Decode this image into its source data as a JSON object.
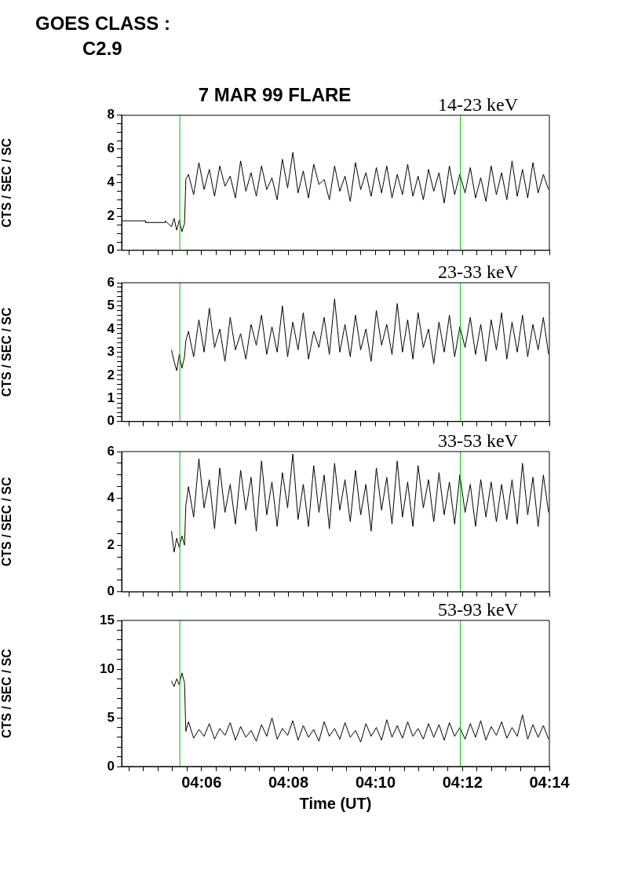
{
  "chart_data": [
    {
      "type": "line",
      "title": "7 MAR 99 FLARE",
      "subtitle": "GOES CLASS : C2.9",
      "ylabel": "CTS / SEC / SC",
      "annotations": [
        "14-23 keV"
      ],
      "tick_labels": "y",
      "grid": false,
      "legend": false,
      "marker": "none",
      "line_style": "solid",
      "xlim": [
        4.0694,
        4.2333
      ],
      "ylim": [
        0,
        8
      ],
      "xticks": [
        {
          "value": 4.0722,
          "label": null
        },
        {
          "value": 4.0778,
          "label": null
        },
        {
          "value": 4.0833,
          "label": null
        },
        {
          "value": 4.0889,
          "label": null
        },
        {
          "value": 4.0944,
          "label": null
        },
        {
          "value": 4.1,
          "label": null
        },
        {
          "value": 4.1056,
          "label": null
        },
        {
          "value": 4.1111,
          "label": null
        },
        {
          "value": 4.1167,
          "label": null
        },
        {
          "value": 4.1222,
          "label": null
        },
        {
          "value": 4.1278,
          "label": null
        },
        {
          "value": 4.1333,
          "label": null
        },
        {
          "value": 4.1389,
          "label": null
        },
        {
          "value": 4.1444,
          "label": null
        },
        {
          "value": 4.15,
          "label": null
        },
        {
          "value": 4.1556,
          "label": null
        },
        {
          "value": 4.1611,
          "label": null
        },
        {
          "value": 4.1667,
          "label": null
        },
        {
          "value": 4.1722,
          "label": null
        },
        {
          "value": 4.1778,
          "label": null
        },
        {
          "value": 4.1833,
          "label": null
        },
        {
          "value": 4.1889,
          "label": null
        },
        {
          "value": 4.1944,
          "label": null
        },
        {
          "value": 4.2,
          "label": null
        },
        {
          "value": 4.2056,
          "label": null
        },
        {
          "value": 4.2111,
          "label": null
        },
        {
          "value": 4.2167,
          "label": null
        },
        {
          "value": 4.2222,
          "label": null
        },
        {
          "value": 4.2278,
          "label": null
        },
        {
          "value": 4.2333,
          "label": null
        }
      ],
      "yticks": [
        0,
        {
          "value": 0.5,
          "label": null
        },
        {
          "value": 1,
          "label": null
        },
        {
          "value": 1.5,
          "label": null
        },
        2,
        {
          "value": 2.5,
          "label": null
        },
        {
          "value": 3,
          "label": null
        },
        {
          "value": 3.5,
          "label": null
        },
        4,
        {
          "value": 4.5,
          "label": null
        },
        {
          "value": 5,
          "label": null
        },
        {
          "value": 5.5,
          "label": null
        },
        6,
        {
          "value": 6.5,
          "label": null
        },
        {
          "value": 7,
          "label": null
        },
        {
          "value": 7.5,
          "label": null
        },
        8
      ],
      "ref_lines": [
        {
          "axis": "x",
          "value": 4.0917,
          "color": "#00c000"
        },
        {
          "axis": "x",
          "value": 4.1992,
          "color": "#00c000"
        }
      ],
      "x": [
        4.0694,
        4.0785,
        4.0786,
        4.086,
        4.0861,
        4.0885,
        4.0895,
        4.0905,
        4.0915,
        4.0925,
        4.0935,
        4.094,
        4.095,
        4.097,
        4.099,
        4.101,
        4.103,
        4.105,
        4.107,
        4.109,
        4.111,
        4.113,
        4.115,
        4.117,
        4.119,
        4.121,
        4.123,
        4.125,
        4.127,
        4.129,
        4.131,
        4.133,
        4.135,
        4.137,
        4.139,
        4.141,
        4.143,
        4.145,
        4.147,
        4.149,
        4.151,
        4.153,
        4.155,
        4.157,
        4.159,
        4.161,
        4.163,
        4.165,
        4.167,
        4.169,
        4.171,
        4.173,
        4.175,
        4.177,
        4.179,
        4.181,
        4.183,
        4.185,
        4.187,
        4.189,
        4.191,
        4.193,
        4.195,
        4.197,
        4.199,
        4.201,
        4.203,
        4.205,
        4.207,
        4.209,
        4.211,
        4.213,
        4.215,
        4.217,
        4.219,
        4.221,
        4.223,
        4.225,
        4.227,
        4.229,
        4.231,
        4.233
      ],
      "series": [
        {
          "color": "#000000",
          "values": [
            1.75,
            1.75,
            1.65,
            1.65,
            1.75,
            1.4,
            1.9,
            1.2,
            1.8,
            1.1,
            1.6,
            4.2,
            4.5,
            3.3,
            5.2,
            3.6,
            4.8,
            3.2,
            5.0,
            3.8,
            4.4,
            3.1,
            5.3,
            3.5,
            4.6,
            3.2,
            5.0,
            3.6,
            4.3,
            3.0,
            5.4,
            3.7,
            5.8,
            3.4,
            4.7,
            3.1,
            5.1,
            3.9,
            4.2,
            3.0,
            5.0,
            3.5,
            4.4,
            2.9,
            5.2,
            3.6,
            4.6,
            3.2,
            4.9,
            3.4,
            5.0,
            3.1,
            4.5,
            3.3,
            5.1,
            3.2,
            4.4,
            3.0,
            4.8,
            3.5,
            4.6,
            2.8,
            5.0,
            3.3,
            4.5,
            3.4,
            4.9,
            3.1,
            4.3,
            2.9,
            5.0,
            3.3,
            4.6,
            3.0,
            5.3,
            3.2,
            4.8,
            3.1,
            5.2,
            3.4,
            4.5,
            3.6
          ]
        }
      ]
    },
    {
      "type": "line",
      "ylabel": "CTS / SEC / SC",
      "annotations": [
        "23-33 keV"
      ],
      "tick_labels": "y",
      "grid": false,
      "legend": false,
      "marker": "none",
      "line_style": "solid",
      "xlim": [
        4.0694,
        4.2333
      ],
      "ylim": [
        0,
        6
      ],
      "xticks": [
        {
          "value": 4.0722,
          "label": null
        },
        {
          "value": 4.0778,
          "label": null
        },
        {
          "value": 4.0833,
          "label": null
        },
        {
          "value": 4.0889,
          "label": null
        },
        {
          "value": 4.0944,
          "label": null
        },
        {
          "value": 4.1,
          "label": null
        },
        {
          "value": 4.1056,
          "label": null
        },
        {
          "value": 4.1111,
          "label": null
        },
        {
          "value": 4.1167,
          "label": null
        },
        {
          "value": 4.1222,
          "label": null
        },
        {
          "value": 4.1278,
          "label": null
        },
        {
          "value": 4.1333,
          "label": null
        },
        {
          "value": 4.1389,
          "label": null
        },
        {
          "value": 4.1444,
          "label": null
        },
        {
          "value": 4.15,
          "label": null
        },
        {
          "value": 4.1556,
          "label": null
        },
        {
          "value": 4.1611,
          "label": null
        },
        {
          "value": 4.1667,
          "label": null
        },
        {
          "value": 4.1722,
          "label": null
        },
        {
          "value": 4.1778,
          "label": null
        },
        {
          "value": 4.1833,
          "label": null
        },
        {
          "value": 4.1889,
          "label": null
        },
        {
          "value": 4.1944,
          "label": null
        },
        {
          "value": 4.2,
          "label": null
        },
        {
          "value": 4.2056,
          "label": null
        },
        {
          "value": 4.2111,
          "label": null
        },
        {
          "value": 4.2167,
          "label": null
        },
        {
          "value": 4.2222,
          "label": null
        },
        {
          "value": 4.2278,
          "label": null
        },
        {
          "value": 4.2333,
          "label": null
        }
      ],
      "yticks": [
        0,
        {
          "value": 0.2,
          "label": null
        },
        {
          "value": 0.4,
          "label": null
        },
        {
          "value": 0.6,
          "label": null
        },
        {
          "value": 0.8,
          "label": null
        },
        1,
        {
          "value": 1.2,
          "label": null
        },
        {
          "value": 1.4,
          "label": null
        },
        {
          "value": 1.6,
          "label": null
        },
        {
          "value": 1.8,
          "label": null
        },
        2,
        {
          "value": 2.2,
          "label": null
        },
        {
          "value": 2.4,
          "label": null
        },
        {
          "value": 2.6,
          "label": null
        },
        {
          "value": 2.8,
          "label": null
        },
        3,
        {
          "value": 3.2,
          "label": null
        },
        {
          "value": 3.4,
          "label": null
        },
        {
          "value": 3.6,
          "label": null
        },
        {
          "value": 3.8,
          "label": null
        },
        4,
        {
          "value": 4.2,
          "label": null
        },
        {
          "value": 4.4,
          "label": null
        },
        {
          "value": 4.6,
          "label": null
        },
        {
          "value": 4.8,
          "label": null
        },
        5,
        {
          "value": 5.2,
          "label": null
        },
        {
          "value": 5.4,
          "label": null
        },
        {
          "value": 5.6,
          "label": null
        },
        {
          "value": 5.8,
          "label": null
        },
        6
      ],
      "ref_lines": [
        {
          "axis": "x",
          "value": 4.0917,
          "color": "#00c000"
        },
        {
          "axis": "x",
          "value": 4.1992,
          "color": "#00c000"
        }
      ],
      "x": [
        4.0885,
        4.0895,
        4.0905,
        4.0915,
        4.0925,
        4.0935,
        4.094,
        4.095,
        4.097,
        4.099,
        4.101,
        4.103,
        4.105,
        4.107,
        4.109,
        4.111,
        4.113,
        4.115,
        4.117,
        4.119,
        4.121,
        4.123,
        4.125,
        4.127,
        4.129,
        4.131,
        4.133,
        4.135,
        4.137,
        4.139,
        4.141,
        4.143,
        4.145,
        4.147,
        4.149,
        4.151,
        4.153,
        4.155,
        4.157,
        4.159,
        4.161,
        4.163,
        4.165,
        4.167,
        4.169,
        4.171,
        4.173,
        4.175,
        4.177,
        4.179,
        4.181,
        4.183,
        4.185,
        4.187,
        4.189,
        4.191,
        4.193,
        4.195,
        4.197,
        4.199,
        4.201,
        4.203,
        4.205,
        4.207,
        4.209,
        4.211,
        4.213,
        4.215,
        4.217,
        4.219,
        4.221,
        4.223,
        4.225,
        4.227,
        4.229,
        4.231,
        4.233
      ],
      "series": [
        {
          "color": "#000000",
          "values": [
            3.1,
            2.6,
            2.2,
            2.9,
            2.3,
            2.8,
            3.5,
            3.9,
            2.8,
            4.4,
            3.0,
            4.9,
            3.2,
            4.0,
            2.6,
            4.5,
            3.1,
            3.8,
            2.7,
            4.2,
            3.3,
            4.6,
            2.9,
            4.1,
            3.0,
            5.0,
            2.8,
            4.3,
            3.1,
            4.7,
            2.7,
            3.9,
            3.2,
            4.5,
            2.9,
            5.3,
            3.0,
            4.2,
            2.8,
            4.6,
            3.1,
            4.0,
            2.6,
            4.8,
            3.3,
            4.2,
            2.9,
            5.1,
            3.0,
            4.4,
            2.7,
            4.7,
            3.2,
            4.0,
            2.5,
            4.3,
            3.0,
            4.6,
            2.8,
            4.1,
            3.2,
            4.5,
            2.9,
            4.2,
            2.6,
            4.4,
            3.1,
            4.7,
            2.7,
            4.3,
            3.0,
            4.6,
            2.8,
            4.2,
            3.1,
            4.5,
            2.9
          ]
        }
      ]
    },
    {
      "type": "line",
      "ylabel": "CTS / SEC / SC",
      "annotations": [
        "33-53 keV"
      ],
      "tick_labels": "y",
      "grid": false,
      "legend": false,
      "marker": "none",
      "line_style": "solid",
      "xlim": [
        4.0694,
        4.2333
      ],
      "ylim": [
        0,
        6
      ],
      "xticks": [
        {
          "value": 4.0722,
          "label": null
        },
        {
          "value": 4.0778,
          "label": null
        },
        {
          "value": 4.0833,
          "label": null
        },
        {
          "value": 4.0889,
          "label": null
        },
        {
          "value": 4.0944,
          "label": null
        },
        {
          "value": 4.1,
          "label": null
        },
        {
          "value": 4.1056,
          "label": null
        },
        {
          "value": 4.1111,
          "label": null
        },
        {
          "value": 4.1167,
          "label": null
        },
        {
          "value": 4.1222,
          "label": null
        },
        {
          "value": 4.1278,
          "label": null
        },
        {
          "value": 4.1333,
          "label": null
        },
        {
          "value": 4.1389,
          "label": null
        },
        {
          "value": 4.1444,
          "label": null
        },
        {
          "value": 4.15,
          "label": null
        },
        {
          "value": 4.1556,
          "label": null
        },
        {
          "value": 4.1611,
          "label": null
        },
        {
          "value": 4.1667,
          "label": null
        },
        {
          "value": 4.1722,
          "label": null
        },
        {
          "value": 4.1778,
          "label": null
        },
        {
          "value": 4.1833,
          "label": null
        },
        {
          "value": 4.1889,
          "label": null
        },
        {
          "value": 4.1944,
          "label": null
        },
        {
          "value": 4.2,
          "label": null
        },
        {
          "value": 4.2056,
          "label": null
        },
        {
          "value": 4.2111,
          "label": null
        },
        {
          "value": 4.2167,
          "label": null
        },
        {
          "value": 4.2222,
          "label": null
        },
        {
          "value": 4.2278,
          "label": null
        },
        {
          "value": 4.2333,
          "label": null
        }
      ],
      "yticks": [
        0,
        {
          "value": 0.5,
          "label": null
        },
        {
          "value": 1,
          "label": null
        },
        {
          "value": 1.5,
          "label": null
        },
        2,
        {
          "value": 2.5,
          "label": null
        },
        {
          "value": 3,
          "label": null
        },
        {
          "value": 3.5,
          "label": null
        },
        4,
        {
          "value": 4.5,
          "label": null
        },
        {
          "value": 5,
          "label": null
        },
        {
          "value": 5.5,
          "label": null
        },
        6
      ],
      "ref_lines": [
        {
          "axis": "x",
          "value": 4.0917,
          "color": "#00c000"
        },
        {
          "axis": "x",
          "value": 4.1992,
          "color": "#00c000"
        }
      ],
      "x": [
        4.0885,
        4.0895,
        4.0905,
        4.0915,
        4.0925,
        4.0935,
        4.094,
        4.095,
        4.097,
        4.099,
        4.101,
        4.103,
        4.105,
        4.107,
        4.109,
        4.111,
        4.113,
        4.115,
        4.117,
        4.119,
        4.121,
        4.123,
        4.125,
        4.127,
        4.129,
        4.131,
        4.133,
        4.135,
        4.137,
        4.139,
        4.141,
        4.143,
        4.145,
        4.147,
        4.149,
        4.151,
        4.153,
        4.155,
        4.157,
        4.159,
        4.161,
        4.163,
        4.165,
        4.167,
        4.169,
        4.171,
        4.173,
        4.175,
        4.177,
        4.179,
        4.181,
        4.183,
        4.185,
        4.187,
        4.189,
        4.191,
        4.193,
        4.195,
        4.197,
        4.199,
        4.201,
        4.203,
        4.205,
        4.207,
        4.209,
        4.211,
        4.213,
        4.215,
        4.217,
        4.219,
        4.221,
        4.223,
        4.225,
        4.227,
        4.229,
        4.231,
        4.233
      ],
      "series": [
        {
          "color": "#000000",
          "values": [
            2.6,
            1.7,
            2.3,
            1.9,
            2.4,
            2.0,
            3.7,
            4.5,
            3.2,
            5.7,
            3.6,
            4.8,
            2.7,
            5.3,
            3.4,
            4.6,
            2.9,
            5.2,
            3.5,
            4.9,
            2.6,
            5.6,
            3.3,
            4.7,
            2.8,
            5.1,
            3.6,
            5.9,
            3.1,
            4.6,
            2.8,
            5.4,
            3.4,
            5.0,
            2.7,
            5.5,
            3.5,
            4.8,
            3.0,
            5.2,
            3.3,
            4.6,
            2.6,
            5.3,
            3.5,
            4.9,
            2.9,
            5.6,
            3.2,
            4.7,
            2.8,
            5.4,
            3.6,
            4.8,
            3.0,
            5.1,
            3.3,
            4.7,
            2.9,
            5.0,
            3.4,
            4.6,
            2.8,
            4.8,
            3.2,
            4.7,
            3.0,
            4.6,
            3.1,
            4.8,
            2.9,
            5.5,
            3.3,
            4.9,
            2.8,
            5.0,
            3.4
          ]
        }
      ]
    },
    {
      "type": "line",
      "xlabel": "Time (UT)",
      "ylabel": "CTS / SEC / SC",
      "annotations": [
        "53-93 keV"
      ],
      "grid": false,
      "legend": false,
      "marker": "none",
      "line_style": "solid",
      "xlim": [
        4.0694,
        4.2333
      ],
      "ylim": [
        0,
        15
      ],
      "xticks": [
        {
          "value": 4.0722,
          "label": null
        },
        {
          "value": 4.0778,
          "label": null
        },
        {
          "value": 4.0833,
          "label": null
        },
        {
          "value": 4.0889,
          "label": null
        },
        {
          "value": 4.0944,
          "label": null
        },
        {
          "value": 4.1,
          "label": "04:06"
        },
        {
          "value": 4.1056,
          "label": null
        },
        {
          "value": 4.1111,
          "label": null
        },
        {
          "value": 4.1167,
          "label": null
        },
        {
          "value": 4.1222,
          "label": null
        },
        {
          "value": 4.1278,
          "label": null
        },
        {
          "value": 4.1333,
          "label": "04:08"
        },
        {
          "value": 4.1389,
          "label": null
        },
        {
          "value": 4.1444,
          "label": null
        },
        {
          "value": 4.15,
          "label": null
        },
        {
          "value": 4.1556,
          "label": null
        },
        {
          "value": 4.1611,
          "label": null
        },
        {
          "value": 4.1667,
          "label": "04:10"
        },
        {
          "value": 4.1722,
          "label": null
        },
        {
          "value": 4.1778,
          "label": null
        },
        {
          "value": 4.1833,
          "label": null
        },
        {
          "value": 4.1889,
          "label": null
        },
        {
          "value": 4.1944,
          "label": null
        },
        {
          "value": 4.2,
          "label": "04:12"
        },
        {
          "value": 4.2056,
          "label": null
        },
        {
          "value": 4.2111,
          "label": null
        },
        {
          "value": 4.2167,
          "label": null
        },
        {
          "value": 4.2222,
          "label": null
        },
        {
          "value": 4.2278,
          "label": null
        },
        {
          "value": 4.2333,
          "label": "04:14"
        }
      ],
      "yticks": [
        0,
        {
          "value": 1,
          "label": null
        },
        {
          "value": 2,
          "label": null
        },
        {
          "value": 3,
          "label": null
        },
        {
          "value": 4,
          "label": null
        },
        5,
        {
          "value": 6,
          "label": null
        },
        {
          "value": 7,
          "label": null
        },
        {
          "value": 8,
          "label": null
        },
        {
          "value": 9,
          "label": null
        },
        10,
        {
          "value": 11,
          "label": null
        },
        {
          "value": 12,
          "label": null
        },
        {
          "value": 13,
          "label": null
        },
        {
          "value": 14,
          "label": null
        },
        15
      ],
      "ref_lines": [
        {
          "axis": "x",
          "value": 4.0917,
          "color": "#00c000"
        },
        {
          "axis": "x",
          "value": 4.1992,
          "color": "#00c000"
        }
      ],
      "x": [
        4.0885,
        4.0895,
        4.0905,
        4.0915,
        4.0925,
        4.0935,
        4.094,
        4.095,
        4.097,
        4.099,
        4.101,
        4.103,
        4.105,
        4.107,
        4.109,
        4.111,
        4.113,
        4.115,
        4.117,
        4.119,
        4.121,
        4.123,
        4.125,
        4.127,
        4.129,
        4.131,
        4.133,
        4.135,
        4.137,
        4.139,
        4.141,
        4.143,
        4.145,
        4.147,
        4.149,
        4.151,
        4.153,
        4.155,
        4.157,
        4.159,
        4.161,
        4.163,
        4.165,
        4.167,
        4.169,
        4.171,
        4.173,
        4.175,
        4.177,
        4.179,
        4.181,
        4.183,
        4.185,
        4.187,
        4.189,
        4.191,
        4.193,
        4.195,
        4.197,
        4.199,
        4.201,
        4.203,
        4.205,
        4.207,
        4.209,
        4.211,
        4.213,
        4.215,
        4.217,
        4.219,
        4.221,
        4.223,
        4.225,
        4.227,
        4.229,
        4.231,
        4.233
      ],
      "series": [
        {
          "color": "#000000",
          "values": [
            8.8,
            8.2,
            9.0,
            8.4,
            9.6,
            8.6,
            3.6,
            4.6,
            2.9,
            3.8,
            3.1,
            4.4,
            2.8,
            3.9,
            3.2,
            4.5,
            2.7,
            4.1,
            3.0,
            3.7,
            2.6,
            4.3,
            3.1,
            5.0,
            2.8,
            3.9,
            3.2,
            4.7,
            2.7,
            4.2,
            3.0,
            3.8,
            2.6,
            4.6,
            3.1,
            3.9,
            2.8,
            4.5,
            3.0,
            3.7,
            2.5,
            4.4,
            3.1,
            4.0,
            2.7,
            4.8,
            3.0,
            4.2,
            2.9,
            4.6,
            3.1,
            3.9,
            2.8,
            4.4,
            3.0,
            4.3,
            2.7,
            4.5,
            3.1,
            4.0,
            2.8,
            4.4,
            3.0,
            4.7,
            2.7,
            4.1,
            3.2,
            4.6,
            2.9,
            4.0,
            3.1,
            5.3,
            2.8,
            4.3,
            3.0,
            4.2,
            2.8
          ]
        }
      ]
    }
  ]
}
